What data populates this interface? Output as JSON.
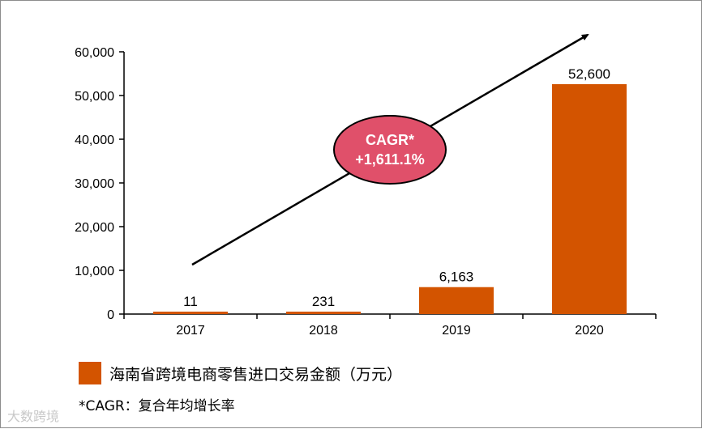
{
  "chart_data": {
    "type": "bar",
    "categories": [
      "2017",
      "2018",
      "2019",
      "2020"
    ],
    "values": [
      11,
      231,
      6163,
      52600
    ],
    "value_labels": [
      "11",
      "231",
      "6,163",
      "52,600"
    ],
    "ylim": [
      0,
      60000
    ],
    "yticks": [
      0,
      10000,
      20000,
      30000,
      40000,
      50000,
      60000
    ],
    "ytick_labels": [
      "0",
      "10,000",
      "20,000",
      "30,000",
      "40,000",
      "50,000",
      "60,000"
    ],
    "grid": false,
    "legend_placement": "bottom-left",
    "bar_color": "#d35400",
    "legend": [
      "海南省跨境电商零售进口交易金额（万元）"
    ],
    "annotation": {
      "line1": "CAGR*",
      "line2": "+1,611.1%",
      "fill": "#e0506a"
    }
  },
  "footnote": "*CAGR：复合年均增长率",
  "watermark": "大数跨境"
}
